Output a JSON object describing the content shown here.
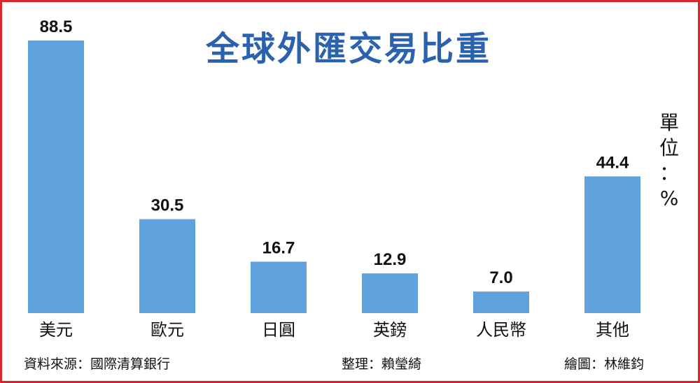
{
  "title": "全球外匯交易比重",
  "unit": {
    "line1": "單",
    "line2": "位",
    "line3": "：",
    "line4": "%"
  },
  "footer": {
    "source": "資料來源：國際清算銀行",
    "compiled": "整理：賴瑩綺",
    "illustrator": "繪圖：林維鈞"
  },
  "colors": {
    "bar": "#5fa2de",
    "title": "#2b62ad",
    "frame": "#d9262b"
  },
  "chart_data": {
    "type": "bar",
    "title": "全球外匯交易比重",
    "ylabel": "單位：%",
    "categories": [
      "美元",
      "歐元",
      "日圓",
      "英鎊",
      "人民幣",
      "其他"
    ],
    "values": [
      88.5,
      30.5,
      16.7,
      12.9,
      7.0,
      44.4
    ],
    "value_labels": [
      "88.5",
      "30.5",
      "16.7",
      "12.9",
      "7.0",
      "44.4"
    ],
    "ylim": [
      0,
      88.5
    ],
    "grid": false
  }
}
